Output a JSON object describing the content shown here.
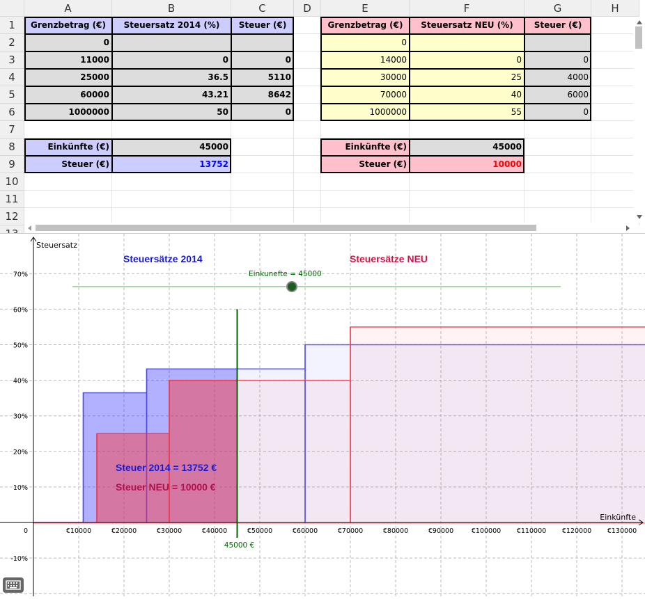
{
  "spreadsheet": {
    "columns": [
      "A",
      "B",
      "C",
      "D",
      "E",
      "F",
      "G",
      "H"
    ],
    "rows": [
      "1",
      "2",
      "3",
      "4",
      "5",
      "6",
      "7",
      "8",
      "9",
      "10",
      "11",
      "12",
      "13"
    ],
    "left_table": {
      "headers": [
        "Grenzbetrag (€)",
        "Steuersatz 2014 (%)",
        "Steuer (€)"
      ],
      "rows": [
        [
          "0",
          "",
          ""
        ],
        [
          "11000",
          "0",
          "0"
        ],
        [
          "25000",
          "36.5",
          "5110"
        ],
        [
          "60000",
          "43.21",
          "8642"
        ],
        [
          "1000000",
          "50",
          "0"
        ]
      ],
      "income_label": "Einkünfte (€)",
      "income_value": "45000",
      "tax_label": "Steuer (€)",
      "tax_value": "13752"
    },
    "right_table": {
      "headers": [
        "Grenzbetrag (€)",
        "Steuersatz NEU (%)",
        "Steuer (€)"
      ],
      "rows": [
        [
          "0",
          "",
          ""
        ],
        [
          "14000",
          "0",
          "0"
        ],
        [
          "30000",
          "25",
          "4000"
        ],
        [
          "70000",
          "40",
          "6000"
        ],
        [
          "1000000",
          "55",
          "0"
        ]
      ],
      "income_label": "Einkünfte (€)",
      "income_value": "45000",
      "tax_label": "Steuer (€)",
      "tax_value": "10000"
    }
  },
  "graph": {
    "y_axis_label": "Steuersatz",
    "x_axis_label": "Einkünfte",
    "origin_label": "0",
    "title_2014": "Steuersätze 2014",
    "title_neu": "Steuersätze NEU",
    "slider_label": "Einkunefte = 45000",
    "marker_label": "45000 €",
    "result_2014": "Steuer 2014 = 13752 €",
    "result_neu": "Steuer NEU = 10000 €",
    "x_ticks": [
      "€10000",
      "€20000",
      "€30000",
      "€40000",
      "€50000",
      "€60000",
      "€70000",
      "€80000",
      "€90000",
      "€100000",
      "€110000",
      "€120000",
      "€130000"
    ],
    "y_ticks": [
      "-10%",
      "10%",
      "20%",
      "30%",
      "40%",
      "50%",
      "60%",
      "70%"
    ]
  },
  "chart_data": {
    "type": "area",
    "x_range": [
      -7000,
      136000
    ],
    "y_range": [
      -0.2,
      0.8
    ],
    "income": 45000,
    "series": [
      {
        "name": "Steuersätze 2014",
        "color": "#3333ff",
        "steps": [
          {
            "from": 11000,
            "to": 25000,
            "rate": 0.365
          },
          {
            "from": 25000,
            "to": 60000,
            "rate": 0.4321
          },
          {
            "from": 60000,
            "to": 1000000,
            "rate": 0.5
          }
        ]
      },
      {
        "name": "Steuersätze NEU",
        "color": "#ff3333",
        "steps": [
          {
            "from": 14000,
            "to": 30000,
            "rate": 0.25
          },
          {
            "from": 30000,
            "to": 70000,
            "rate": 0.4
          },
          {
            "from": 70000,
            "to": 1000000,
            "rate": 0.55
          }
        ]
      }
    ]
  },
  "colors": {
    "blue_header": "#ccccff",
    "red_header": "#ffc0cb",
    "yellow_cell": "#ffffcc",
    "gray_cell": "#dddddd",
    "blue_value": "#0000ff",
    "red_value": "#ff0000",
    "title_2014": "#1a1ad6",
    "title_neu": "#d01445",
    "slider_line": "#008000"
  }
}
